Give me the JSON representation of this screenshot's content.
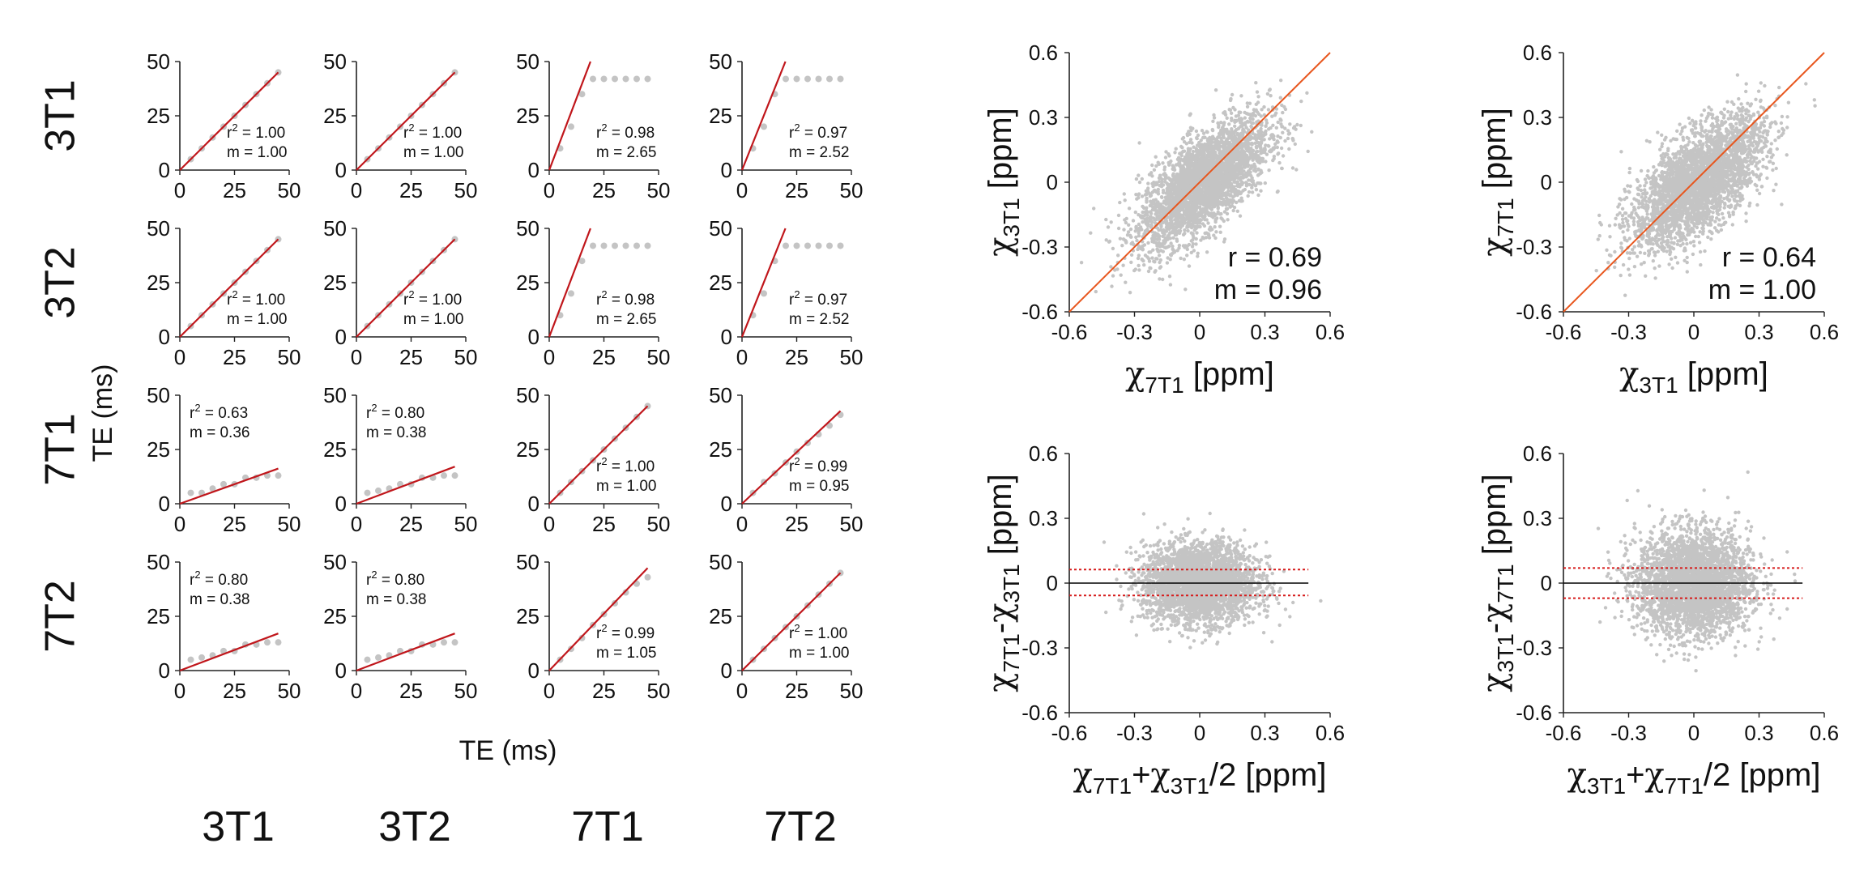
{
  "figure": {
    "row_labels": [
      "3T1",
      "3T2",
      "7T1",
      "7T2"
    ],
    "col_labels": [
      "3T1",
      "3T2",
      "7T1",
      "7T2"
    ],
    "grid_ylabel": "TE (ms)",
    "grid_xlabel": "TE (ms)"
  },
  "colors": {
    "fit_line": "#c0161b",
    "points": "#c4c4c4",
    "identity_line": "#e8561d",
    "mean_line": "#000000",
    "limits": "#d61a1a",
    "axis": "#222222"
  },
  "chart_data": [
    {
      "type": "scatter",
      "name": "te-comparison-grid",
      "xlim": [
        0,
        50
      ],
      "ylim": [
        0,
        50
      ],
      "ticks": [
        0,
        25,
        50
      ],
      "x": [
        5,
        10,
        15,
        20,
        25,
        30,
        35,
        40,
        45
      ],
      "panels": [
        {
          "row": 0,
          "col": 0,
          "y": [
            5,
            10,
            15,
            20,
            25,
            30,
            35,
            40,
            45
          ],
          "m": 1.0,
          "r2_text": "r² = 1.00",
          "m_text": "m = 1.00",
          "label_pos": "br"
        },
        {
          "row": 0,
          "col": 1,
          "y": [
            5,
            10,
            15,
            20,
            25,
            30,
            35,
            40,
            45
          ],
          "m": 1.0,
          "r2_text": "r² = 1.00",
          "m_text": "m = 1.00",
          "label_pos": "br"
        },
        {
          "row": 0,
          "col": 2,
          "y": [
            10,
            20,
            35,
            42,
            42,
            42,
            42,
            42,
            42
          ],
          "m": 2.65,
          "r2_text": "r² = 0.98",
          "m_text": "m = 2.65",
          "label_pos": "br"
        },
        {
          "row": 0,
          "col": 3,
          "y": [
            10,
            20,
            35,
            42,
            42,
            42,
            42,
            42,
            42
          ],
          "m": 2.52,
          "r2_text": "r² = 0.97",
          "m_text": "m = 2.52",
          "label_pos": "br"
        },
        {
          "row": 1,
          "col": 0,
          "y": [
            5,
            10,
            15,
            20,
            25,
            30,
            35,
            40,
            45
          ],
          "m": 1.0,
          "r2_text": "r² = 1.00",
          "m_text": "m = 1.00",
          "label_pos": "br"
        },
        {
          "row": 1,
          "col": 1,
          "y": [
            5,
            10,
            15,
            20,
            25,
            30,
            35,
            40,
            45
          ],
          "m": 1.0,
          "r2_text": "r² = 1.00",
          "m_text": "m = 1.00",
          "label_pos": "br"
        },
        {
          "row": 1,
          "col": 2,
          "y": [
            10,
            20,
            35,
            42,
            42,
            42,
            42,
            42,
            42
          ],
          "m": 2.65,
          "r2_text": "r² = 0.98",
          "m_text": "m = 2.65",
          "label_pos": "br"
        },
        {
          "row": 1,
          "col": 3,
          "y": [
            10,
            20,
            35,
            42,
            42,
            42,
            42,
            42,
            42
          ],
          "m": 2.52,
          "r2_text": "r² = 0.97",
          "m_text": "m = 2.52",
          "label_pos": "br"
        },
        {
          "row": 2,
          "col": 0,
          "y": [
            5,
            5,
            7,
            9,
            9,
            12,
            12,
            13,
            13
          ],
          "m": 0.36,
          "r2_text": "r² = 0.63",
          "m_text": "m = 0.36",
          "label_pos": "tl"
        },
        {
          "row": 2,
          "col": 1,
          "y": [
            5,
            6,
            7,
            9,
            9,
            12,
            12,
            13,
            13
          ],
          "m": 0.38,
          "r2_text": "r² = 0.80",
          "m_text": "m = 0.38",
          "label_pos": "tl"
        },
        {
          "row": 2,
          "col": 2,
          "y": [
            5,
            10,
            15,
            20,
            25,
            30,
            35,
            40,
            45
          ],
          "m": 1.0,
          "r2_text": "r² = 1.00",
          "m_text": "m = 1.00",
          "label_pos": "br"
        },
        {
          "row": 2,
          "col": 3,
          "y": [
            5,
            10,
            14,
            19,
            24,
            28,
            32,
            36,
            41
          ],
          "m": 0.95,
          "r2_text": "r² = 0.99",
          "m_text": "m = 0.95",
          "label_pos": "br"
        },
        {
          "row": 3,
          "col": 0,
          "y": [
            5,
            6,
            7,
            9,
            9,
            12,
            12,
            13,
            13
          ],
          "m": 0.38,
          "r2_text": "r² = 0.80",
          "m_text": "m = 0.38",
          "label_pos": "tl"
        },
        {
          "row": 3,
          "col": 1,
          "y": [
            5,
            6,
            7,
            9,
            9,
            12,
            12,
            13,
            13
          ],
          "m": 0.38,
          "r2_text": "r² = 0.80",
          "m_text": "m = 0.38",
          "label_pos": "tl"
        },
        {
          "row": 3,
          "col": 2,
          "y": [
            5,
            10,
            15,
            21,
            26,
            31,
            36,
            40,
            43
          ],
          "m": 1.05,
          "r2_text": "r² = 0.99",
          "m_text": "m = 1.05",
          "label_pos": "br"
        },
        {
          "row": 3,
          "col": 3,
          "y": [
            5,
            10,
            15,
            20,
            25,
            30,
            35,
            40,
            45
          ],
          "m": 1.0,
          "r2_text": "r² = 1.00",
          "m_text": "m = 1.00",
          "label_pos": "br"
        }
      ]
    },
    {
      "type": "scatter",
      "name": "correlation-7T1-vs-3T1",
      "xlim": [
        -0.6,
        0.6
      ],
      "ylim": [
        -0.6,
        0.6
      ],
      "ticks": [
        -0.6,
        -0.3,
        0,
        0.3,
        0.6
      ],
      "xlabel": {
        "chi": "χ",
        "sub": "7T1",
        "unit": "[ppm]"
      },
      "ylabel": {
        "chi": "χ",
        "sub": "3T1",
        "unit": "[ppm]"
      },
      "r": 0.69,
      "m": 0.96,
      "r_text": "r = 0.69",
      "m_text": "m = 0.96",
      "spread": 0.11,
      "line": {
        "x": [
          -0.6,
          0.6
        ],
        "y": [
          -0.6,
          0.6
        ]
      }
    },
    {
      "type": "scatter",
      "name": "correlation-3T1-vs-7T1",
      "xlim": [
        -0.6,
        0.6
      ],
      "ylim": [
        -0.6,
        0.6
      ],
      "ticks": [
        -0.6,
        -0.3,
        0,
        0.3,
        0.6
      ],
      "xlabel": {
        "chi": "χ",
        "sub": "3T1",
        "unit": "[ppm]"
      },
      "ylabel": {
        "chi": "χ",
        "sub": "7T1",
        "unit": "[ppm]"
      },
      "r": 0.64,
      "m": 1.0,
      "r_text": "r = 0.64",
      "m_text": "m = 1.00",
      "spread": 0.12,
      "line": {
        "x": [
          -0.6,
          0.6
        ],
        "y": [
          -0.6,
          0.6
        ]
      }
    },
    {
      "type": "scatter",
      "name": "bland-altman-7T1-3T1",
      "xlim": [
        -0.6,
        0.6
      ],
      "ylim": [
        -0.6,
        0.6
      ],
      "ticks": [
        -0.6,
        -0.3,
        0,
        0.3,
        0.6
      ],
      "xlabel": {
        "a": "χ",
        "a_sub": "7T1",
        "op": "+",
        "b": "χ",
        "b_sub": "3T1",
        "tail": "/2 [ppm]"
      },
      "ylabel": {
        "a": "χ",
        "a_sub": "7T1",
        "op": "-",
        "b": "χ",
        "b_sub": "3T1",
        "unit": "[ppm]"
      },
      "mean": 0.0,
      "limits": [
        -0.057,
        0.063
      ],
      "spread": 0.09
    },
    {
      "type": "scatter",
      "name": "bland-altman-3T1-7T1",
      "xlim": [
        -0.6,
        0.6
      ],
      "ylim": [
        -0.6,
        0.6
      ],
      "ticks": [
        -0.6,
        -0.3,
        0,
        0.3,
        0.6
      ],
      "xlabel": {
        "a": "χ",
        "a_sub": "3T1",
        "op": "+",
        "b": "χ",
        "b_sub": "7T1",
        "tail": "/2 [ppm]"
      },
      "ylabel": {
        "a": "χ",
        "a_sub": "3T1",
        "op": "-",
        "b": "χ",
        "b_sub": "7T1",
        "unit": "[ppm]"
      },
      "mean": 0.0,
      "limits": [
        -0.07,
        0.07
      ],
      "spread": 0.12
    }
  ]
}
